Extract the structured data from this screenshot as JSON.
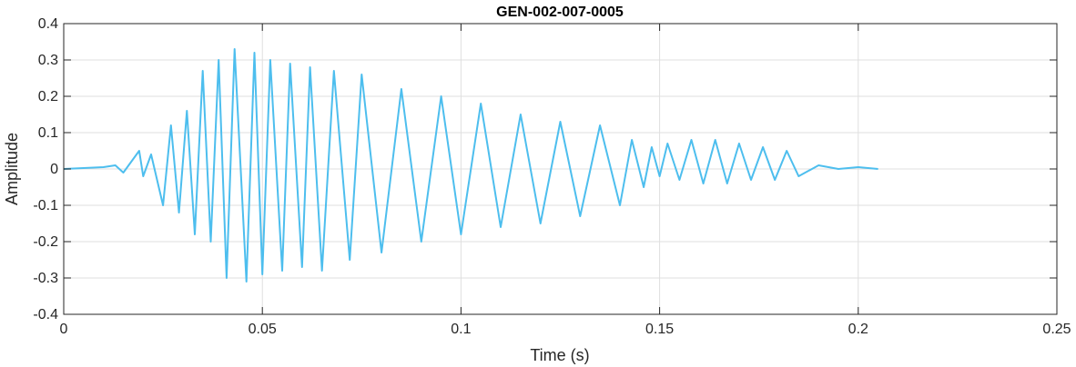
{
  "chart_data": {
    "type": "line",
    "title": "GEN-002-007-0005",
    "xlabel": "Time (s)",
    "ylabel": "Amplitude",
    "xlim": [
      0,
      0.25
    ],
    "ylim": [
      -0.4,
      0.4
    ],
    "x_ticks": [
      0,
      0.05,
      0.1,
      0.15,
      0.2,
      0.25
    ],
    "x_tick_labels": [
      "0",
      "0.05",
      "0.1",
      "0.15",
      "0.2",
      "0.25"
    ],
    "y_ticks": [
      -0.4,
      -0.3,
      -0.2,
      -0.1,
      0,
      0.1,
      0.2,
      0.3,
      0.4
    ],
    "y_tick_labels": [
      "-0.4",
      "-0.3",
      "-0.2",
      "-0.1",
      "0",
      "0.1",
      "0.2",
      "0.3",
      "0.4"
    ],
    "grid": true,
    "line_color": "#4DBEEE",
    "series": [
      {
        "name": "",
        "x": [
          0,
          0.01,
          0.013,
          0.015,
          0.017,
          0.019,
          0.02,
          0.022,
          0.025,
          0.027,
          0.029,
          0.031,
          0.033,
          0.035,
          0.037,
          0.039,
          0.041,
          0.043,
          0.046,
          0.048,
          0.05,
          0.052,
          0.055,
          0.057,
          0.06,
          0.062,
          0.065,
          0.068,
          0.072,
          0.075,
          0.08,
          0.085,
          0.09,
          0.095,
          0.1,
          0.105,
          0.11,
          0.115,
          0.12,
          0.125,
          0.13,
          0.135,
          0.14,
          0.143,
          0.146,
          0.148,
          0.15,
          0.152,
          0.155,
          0.158,
          0.161,
          0.164,
          0.167,
          0.17,
          0.173,
          0.176,
          0.179,
          0.182,
          0.185,
          0.19,
          0.195,
          0.2,
          0.205
        ],
        "y": [
          0,
          0.005,
          0.01,
          -0.01,
          0.02,
          0.05,
          -0.02,
          0.04,
          -0.1,
          0.12,
          -0.12,
          0.16,
          -0.18,
          0.27,
          -0.2,
          0.3,
          -0.3,
          0.33,
          -0.31,
          0.32,
          -0.29,
          0.3,
          -0.28,
          0.29,
          -0.27,
          0.28,
          -0.28,
          0.27,
          -0.25,
          0.26,
          -0.23,
          0.22,
          -0.2,
          0.2,
          -0.18,
          0.18,
          -0.16,
          0.15,
          -0.15,
          0.13,
          -0.13,
          0.12,
          -0.1,
          0.08,
          -0.05,
          0.06,
          -0.02,
          0.07,
          -0.03,
          0.08,
          -0.04,
          0.08,
          -0.04,
          0.07,
          -0.03,
          0.06,
          -0.03,
          0.05,
          -0.02,
          0.01,
          0,
          0.005,
          0
        ]
      }
    ]
  }
}
